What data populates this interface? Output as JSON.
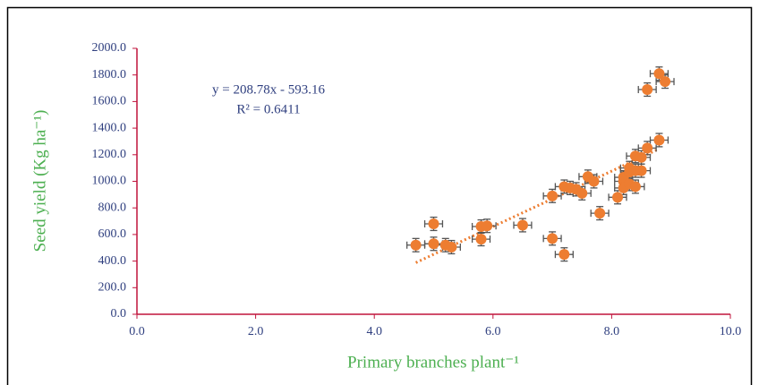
{
  "chart_data": {
    "type": "scatter",
    "x_label": "Primary branches plant⁻¹",
    "y_label": "Seed yield (Kg ha⁻¹)",
    "annotations": [
      "y = 208.78x - 593.16",
      "R² = 0.6411"
    ],
    "color": "#ed7d31",
    "x": [
      4.7,
      5.0,
      5.0,
      5.2,
      5.3,
      5.8,
      5.8,
      5.9,
      6.5,
      7.0,
      7.2,
      7.0,
      7.2,
      7.3,
      7.4,
      7.5,
      7.6,
      7.7,
      7.8,
      8.1,
      8.2,
      8.2,
      8.2,
      8.3,
      8.3,
      8.4,
      8.4,
      8.5,
      8.4,
      8.6,
      8.8,
      8.6,
      8.8,
      8.9,
      8.3,
      8.5
    ],
    "values": [
      520,
      680,
      530,
      520,
      505,
      565,
      660,
      665,
      670,
      570,
      450,
      890,
      960,
      950,
      940,
      910,
      1035,
      1000,
      760,
      880,
      1000,
      950,
      1030,
      1070,
      980,
      1080,
      1190,
      1080,
      960,
      1250,
      1310,
      1690,
      1810,
      1750,
      1100,
      1180
    ],
    "x_error": 0.15,
    "y_error": 50,
    "trendline": {
      "x": [
        4.7,
        8.8
      ],
      "values": [
        388,
        1244
      ],
      "color": "#ed7d31"
    },
    "xlim": [
      0,
      10
    ],
    "xticks": [
      {
        "value": 0,
        "label": "0.0"
      },
      {
        "value": 2,
        "label": "2.0"
      },
      {
        "value": 4,
        "label": "4.0"
      },
      {
        "value": 6,
        "label": "6.0"
      },
      {
        "value": 8,
        "label": "8.0"
      },
      {
        "value": 10,
        "label": "10.0"
      }
    ],
    "ylim": [
      0,
      2000
    ],
    "yticks": [
      {
        "value": 0,
        "label": "0.0"
      },
      {
        "value": 200,
        "label": "200.0"
      },
      {
        "value": 400,
        "label": "400.0"
      },
      {
        "value": 600,
        "label": "600.0"
      },
      {
        "value": 800,
        "label": "800.0"
      },
      {
        "value": 1000,
        "label": "1000.0"
      },
      {
        "value": 1200,
        "label": "1200.0"
      },
      {
        "value": 1400,
        "label": "1400.0"
      },
      {
        "value": 1600,
        "label": "1600.0"
      },
      {
        "value": 1800,
        "label": "1800.0"
      },
      {
        "value": 2000,
        "label": "2000.0"
      }
    ],
    "grid": false
  }
}
